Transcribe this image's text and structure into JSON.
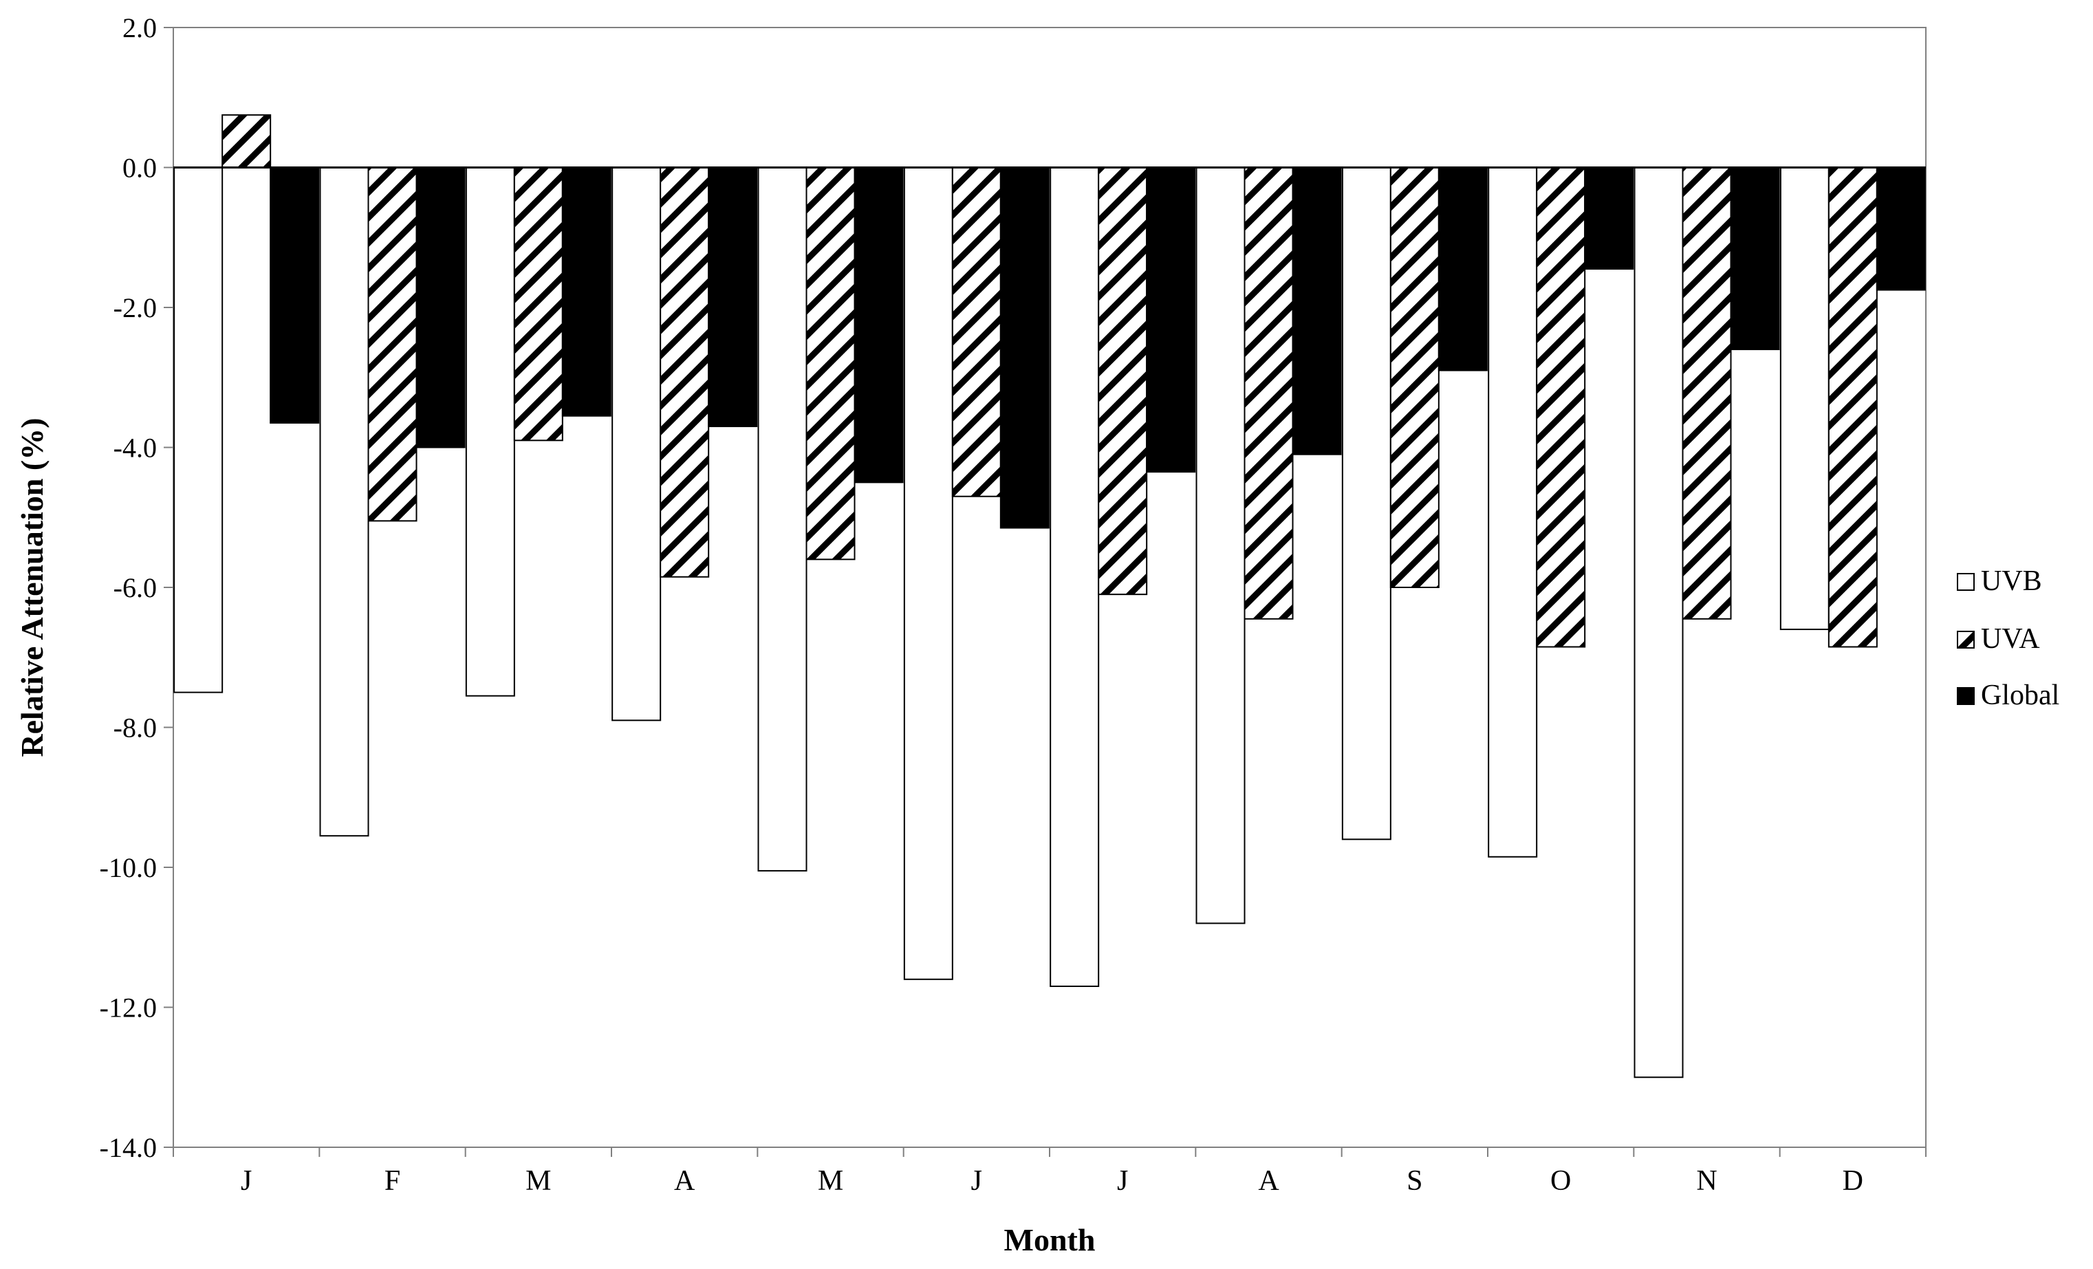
{
  "chart_data": {
    "type": "bar",
    "xlabel": "Month",
    "ylabel": "Relative Attenuation (%)",
    "ylim": [
      -14.0,
      2.0
    ],
    "yticks": [
      "2.0",
      "0.0",
      "-2.0",
      "-4.0",
      "-6.0",
      "-8.0",
      "-10.0",
      "-12.0",
      "-14.0"
    ],
    "categories": [
      "J",
      "F",
      "M",
      "A",
      "M",
      "J",
      "J",
      "A",
      "S",
      "O",
      "N",
      "D"
    ],
    "grid": false,
    "legend_position": "right",
    "series": [
      {
        "name": "UVB",
        "fill": "white",
        "values": [
          -7.5,
          -9.55,
          -7.55,
          -7.9,
          -10.05,
          -11.6,
          -11.7,
          -10.8,
          -9.6,
          -9.85,
          -13.0,
          -6.6
        ]
      },
      {
        "name": "UVA",
        "fill": "hatched",
        "values": [
          0.75,
          -5.05,
          -3.9,
          -5.85,
          -5.6,
          -4.7,
          -6.1,
          -6.45,
          -6.0,
          -6.85,
          -6.45,
          -6.85
        ]
      },
      {
        "name": "Global",
        "fill": "black",
        "values": [
          -3.65,
          -4.0,
          -3.55,
          -3.7,
          -4.5,
          -5.15,
          -4.35,
          -4.1,
          -2.9,
          -1.45,
          -2.6,
          -1.75
        ]
      }
    ],
    "colors": {
      "uvb": "#ffffff",
      "global": "#000000",
      "stroke": "#000000"
    }
  }
}
